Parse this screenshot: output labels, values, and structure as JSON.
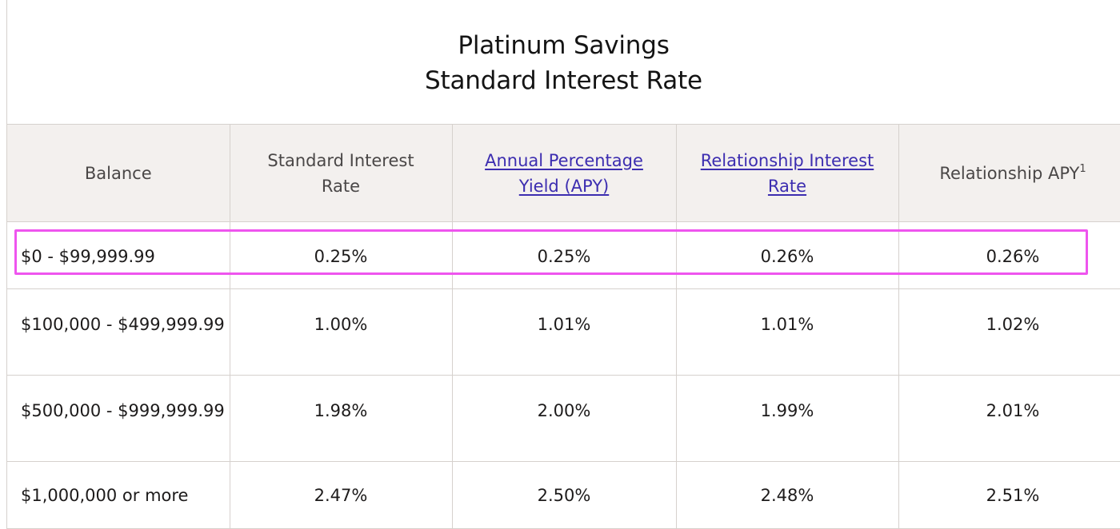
{
  "title": {
    "line1": "Platinum Savings",
    "line2": "Standard Interest Rate"
  },
  "table": {
    "headers": [
      {
        "label": "Balance",
        "link": false
      },
      {
        "label": "Standard Interest Rate",
        "link": false
      },
      {
        "label": "Annual Percentage Yield (APY)",
        "link": true
      },
      {
        "label": "Relationship Interest Rate",
        "link": true
      },
      {
        "label": "Relationship APY",
        "superscript": "1",
        "link": false
      }
    ],
    "rows": [
      {
        "balance": "$0 - $99,999.99",
        "standard_rate": "0.25%",
        "apy": "0.25%",
        "relationship_rate": "0.26%",
        "relationship_apy": "0.26%",
        "highlighted": true
      },
      {
        "balance": "$100,000 - $499,999.99",
        "standard_rate": "1.00%",
        "apy": "1.01%",
        "relationship_rate": "1.01%",
        "relationship_apy": "1.02%"
      },
      {
        "balance": "$500,000 - $999,999.99",
        "standard_rate": "1.98%",
        "apy": "2.00%",
        "relationship_rate": "1.99%",
        "relationship_apy": "2.01%"
      },
      {
        "balance": "$1,000,000 or more",
        "standard_rate": "2.47%",
        "apy": "2.50%",
        "relationship_rate": "2.48%",
        "relationship_apy": "2.51%"
      }
    ]
  },
  "colors": {
    "header_background": "#f3f0ee",
    "link": "#3c2db0",
    "highlight_border": "#ee55ee",
    "grid_line": "#d6d1cd"
  }
}
